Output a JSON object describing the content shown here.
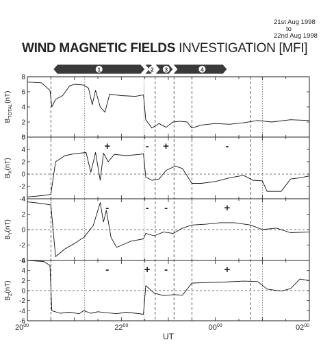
{
  "header": {
    "date_start": "21st Aug 1998",
    "date_to": "to",
    "date_end": "22nd Aug 1998",
    "title_bold": "WIND MAGNETIC FIELDS",
    "title_rest": " INVESTIGATION [MFI]"
  },
  "chart_data": {
    "type": "line",
    "xlabel": "UT",
    "x_unit": "hours UT (20 = 20:00 on 21 Aug; 26 = 02:00 on 22 Aug)",
    "xlim": [
      20,
      26
    ],
    "x_ticks": [
      {
        "x": 20,
        "hour": "20",
        "sup": "00"
      },
      {
        "x": 22,
        "hour": "22",
        "sup": "00"
      },
      {
        "x": 24,
        "hour": "00",
        "sup": "00"
      },
      {
        "x": 26,
        "hour": "02",
        "sup": "00"
      }
    ],
    "boundaries_dashed": [
      20.5,
      22.72,
      23.12,
      23.5,
      24.75
    ],
    "boundaries_solid": [
      21.22,
      22.48,
      25.0
    ],
    "regions": [
      {
        "label": "1",
        "start": 20.55,
        "end": 22.5
      },
      {
        "label": "2",
        "start": 22.5,
        "end": 22.72
      },
      {
        "label": "3",
        "start": 22.72,
        "end": 23.1
      },
      {
        "label": "4",
        "start": 23.1,
        "end": 24.25
      }
    ],
    "panels": [
      {
        "name": "B_TOTAL",
        "label_main": "B",
        "label_sub": "TOTAL",
        "label_unit": "(nT)",
        "ylim": [
          0,
          8
        ],
        "ticks": [
          0,
          2,
          4,
          6,
          8
        ],
        "zero_line": false,
        "signs": [],
        "x": [
          20,
          20.3,
          20.48,
          20.52,
          20.6,
          20.75,
          20.9,
          21.0,
          21.2,
          21.3,
          21.38,
          21.45,
          21.55,
          21.65,
          21.75,
          22.0,
          22.3,
          22.47,
          22.52,
          22.65,
          22.8,
          22.95,
          23.1,
          23.25,
          23.4,
          23.5,
          23.7,
          24.0,
          24.3,
          24.6,
          24.9,
          25.2,
          25.6,
          26.0
        ],
        "y": [
          7.3,
          7.2,
          6.2,
          4.0,
          5.0,
          5.5,
          6.8,
          7.0,
          6.9,
          6.5,
          4.3,
          6.2,
          4.0,
          3.3,
          5.7,
          5.5,
          5.4,
          5.6,
          2.3,
          1.2,
          1.8,
          1.3,
          2.0,
          2.1,
          2.0,
          1.2,
          1.6,
          1.8,
          1.7,
          1.9,
          2.2,
          2.0,
          2.3,
          2.2
        ]
      },
      {
        "name": "B_X",
        "label_main": "B",
        "label_sub": "X",
        "label_unit": "(nT)",
        "ylim": [
          -4,
          6
        ],
        "ticks": [
          -4,
          -2,
          0,
          2,
          4,
          6
        ],
        "zero_line": true,
        "signs": [
          {
            "x": 21.7,
            "s": "+"
          },
          {
            "x": 22.55,
            "s": "-"
          },
          {
            "x": 22.95,
            "s": "+"
          },
          {
            "x": 24.25,
            "s": "-"
          }
        ],
        "x": [
          20,
          20.3,
          20.5,
          20.6,
          20.8,
          21.0,
          21.25,
          21.35,
          21.45,
          21.55,
          21.62,
          21.72,
          21.85,
          22.1,
          22.4,
          22.47,
          22.52,
          22.65,
          22.8,
          22.95,
          23.15,
          23.3,
          23.5,
          23.7,
          24.0,
          24.3,
          24.6,
          24.8,
          25.0,
          25.1,
          25.4,
          25.6,
          25.8,
          26.0
        ],
        "y": [
          -3.7,
          -3.5,
          -3.3,
          2.0,
          3.0,
          3.3,
          3.5,
          0.3,
          3.5,
          -1.0,
          3.4,
          2.0,
          3.2,
          3.0,
          3.2,
          3.3,
          -0.5,
          -1.0,
          -0.8,
          0.6,
          1.3,
          0.9,
          -1.5,
          -1.5,
          -1.2,
          -0.6,
          -0.2,
          -1.0,
          -1.1,
          -2.8,
          -2.8,
          -0.8,
          -0.6,
          -0.3
        ]
      },
      {
        "name": "B_Y",
        "label_main": "B",
        "label_sub": "Y",
        "label_unit": "(nT)",
        "ylim": [
          -4,
          4
        ],
        "ticks": [
          -4,
          -2,
          0,
          2,
          4
        ],
        "zero_line": true,
        "signs": [
          {
            "x": 21.7,
            "s": "-"
          },
          {
            "x": 22.55,
            "s": "-"
          },
          {
            "x": 22.95,
            "s": "-"
          },
          {
            "x": 24.25,
            "s": "+"
          }
        ],
        "x": [
          20,
          20.3,
          20.5,
          20.6,
          20.8,
          21.0,
          21.2,
          21.4,
          21.55,
          21.62,
          21.68,
          21.78,
          21.9,
          22.2,
          22.47,
          22.52,
          22.7,
          22.9,
          23.1,
          23.3,
          23.5,
          23.8,
          24.1,
          24.4,
          24.75,
          25.0,
          25.3,
          25.6,
          26.0
        ],
        "y": [
          3.6,
          3.4,
          3.2,
          -3.5,
          -2.5,
          -1.8,
          -1.0,
          0.5,
          3.5,
          1.0,
          2.5,
          -1.0,
          -2.3,
          -1.5,
          -1.2,
          -0.5,
          -0.8,
          -0.3,
          -0.5,
          0.2,
          0.6,
          0.7,
          0.9,
          0.9,
          0.6,
          0.0,
          0.2,
          -0.4,
          -0.3
        ]
      },
      {
        "name": "B_Z",
        "label_main": "B",
        "label_sub": "Z",
        "label_unit": "(nT)",
        "ylim": [
          -6,
          6
        ],
        "ticks": [
          -6,
          -4,
          -2,
          0,
          2,
          4,
          6
        ],
        "zero_line": true,
        "signs": [
          {
            "x": 21.7,
            "s": "-"
          },
          {
            "x": 22.55,
            "s": "+"
          },
          {
            "x": 22.95,
            "s": "-"
          },
          {
            "x": 24.25,
            "s": "+"
          }
        ],
        "x": [
          20,
          20.35,
          20.48,
          20.52,
          20.7,
          20.9,
          21.1,
          21.2,
          21.35,
          21.5,
          21.7,
          21.9,
          22.1,
          22.3,
          22.47,
          22.52,
          22.7,
          22.9,
          23.1,
          23.3,
          23.5,
          23.8,
          24.2,
          24.6,
          24.9,
          25.1,
          25.4,
          25.6,
          25.8,
          26.0
        ],
        "y": [
          6.0,
          5.8,
          5.0,
          -4.0,
          -4.5,
          -4.3,
          -4.6,
          -4.0,
          -4.5,
          -4.2,
          -4.4,
          -4.6,
          -4.3,
          -4.5,
          -4.7,
          1.0,
          -0.5,
          -1.0,
          -0.8,
          -0.9,
          1.5,
          1.6,
          1.7,
          1.9,
          1.8,
          0.3,
          -0.1,
          0.4,
          2.3,
          2.0
        ]
      }
    ]
  }
}
